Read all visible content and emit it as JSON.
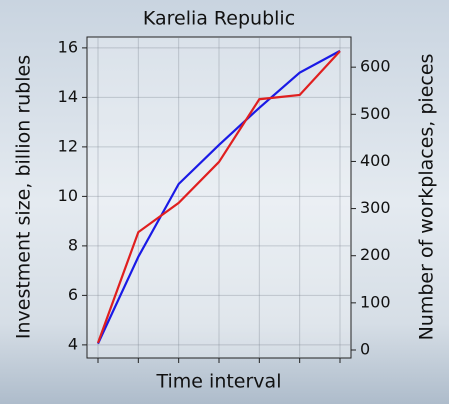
{
  "chart_data": {
    "type": "line",
    "title": "Karelia Republic",
    "xlabel": "Time interval",
    "ylabel": "Investment size, billion rubles",
    "y2label": "Number of workplaces, pieces",
    "categories": [
      null,
      null,
      null,
      null,
      null,
      null,
      null
    ],
    "series": [
      {
        "name": "Investment size",
        "color": "#1a1ae6",
        "values": [
          4.05,
          7.56,
          10.5,
          12.08,
          13.58,
          15.0,
          15.88
        ]
      },
      {
        "name": "Number of workplaces",
        "color": "#e01f1f",
        "axis": "y2",
        "values": [
          15,
          250,
          312,
          399,
          532,
          541,
          634
        ]
      }
    ],
    "ylim": [
      3.47,
      16.44
    ],
    "yticks": [
      4,
      6,
      8,
      10,
      12,
      14,
      16
    ],
    "y2lim": [
      -17,
      664
    ],
    "y2ticks": [
      0,
      100,
      200,
      300,
      400,
      500,
      600
    ],
    "grid": true
  }
}
